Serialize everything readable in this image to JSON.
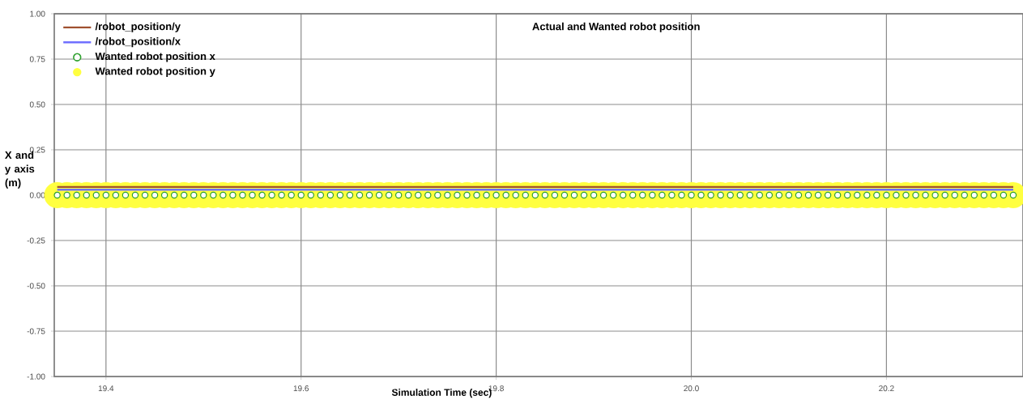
{
  "chart_data": {
    "type": "line",
    "title": "Actual and Wanted robot position",
    "xlabel": "Simulation Time (sec)",
    "ylabel": "X and y axis (m)",
    "xlim": [
      19.347,
      20.34
    ],
    "ylim": [
      -1,
      1
    ],
    "xticks": [
      19.4,
      19.6,
      19.8,
      {
        "value": 20.0,
        "label": "20.0"
      },
      20.2
    ],
    "yticks": [
      {
        "value": -1,
        "label": "-1.00"
      },
      {
        "value": -0.75,
        "label": "-0.75"
      },
      {
        "value": -0.5,
        "label": "-0.50"
      },
      {
        "value": -0.25,
        "label": "-0.25"
      },
      {
        "value": 0,
        "label": "0.00"
      },
      {
        "value": 0.25,
        "label": "0.25"
      },
      {
        "value": 0.5,
        "label": "0.50"
      },
      {
        "value": 0.75,
        "label": "0.75"
      },
      {
        "value": 1,
        "label": "1.00"
      }
    ],
    "grid": true,
    "legend": "top left",
    "series": [
      {
        "type": "scatter",
        "name": "Wanted robot position y",
        "color": "#ffff40",
        "marker": "circle",
        "x": [
          19.35,
          19.36,
          19.37,
          19.38,
          19.39,
          19.4,
          19.41,
          19.42,
          19.43,
          19.44,
          19.45,
          19.46,
          19.47,
          19.48,
          19.49,
          19.5,
          19.51,
          19.52,
          19.53,
          19.54,
          19.55,
          19.56,
          19.57,
          19.58,
          19.59,
          19.6,
          19.61,
          19.62,
          19.63,
          19.64,
          19.65,
          19.66,
          19.67,
          19.68,
          19.69,
          19.7,
          19.71,
          19.72,
          19.73,
          19.74,
          19.75,
          19.76,
          19.77,
          19.78,
          19.79,
          19.8,
          19.81,
          19.82,
          19.83,
          19.84,
          19.85,
          19.86,
          19.87,
          19.88,
          19.89,
          19.9,
          19.91,
          19.92,
          19.93,
          19.94,
          19.95,
          19.96,
          19.97,
          19.98,
          19.99,
          20.0,
          20.01,
          20.02,
          20.03,
          20.04,
          20.05,
          20.06,
          20.07,
          20.08,
          20.09,
          20.1,
          20.11,
          20.12,
          20.13,
          20.14,
          20.15,
          20.16,
          20.17,
          20.18,
          20.19,
          20.2,
          20.21,
          20.22,
          20.23,
          20.24,
          20.25,
          20.26,
          20.27,
          20.28,
          20.29,
          20.3,
          20.31,
          20.32,
          20.33
        ],
        "values": [
          0,
          0,
          0,
          0,
          0,
          0,
          0,
          0,
          0,
          0,
          0,
          0,
          0,
          0,
          0,
          0,
          0,
          0,
          0,
          0,
          0,
          0,
          0,
          0,
          0,
          0,
          0,
          0,
          0,
          0,
          0,
          0,
          0,
          0,
          0,
          0,
          0,
          0,
          0,
          0,
          0,
          0,
          0,
          0,
          0,
          0,
          0,
          0,
          0,
          0,
          0,
          0,
          0,
          0,
          0,
          0,
          0,
          0,
          0,
          0,
          0,
          0,
          0,
          0,
          0,
          0,
          0,
          0,
          0,
          0,
          0,
          0,
          0,
          0,
          0,
          0,
          0,
          0,
          0,
          0,
          0,
          0,
          0,
          0,
          0,
          0,
          0,
          0,
          0,
          0,
          0,
          0,
          0,
          0,
          0,
          0,
          0,
          0,
          0
        ]
      },
      {
        "type": "scatter",
        "name": "Wanted robot position x",
        "color": "#2ca02c",
        "marker": "circle",
        "x": [
          19.35,
          19.36,
          19.37,
          19.38,
          19.39,
          19.4,
          19.41,
          19.42,
          19.43,
          19.44,
          19.45,
          19.46,
          19.47,
          19.48,
          19.49,
          19.5,
          19.51,
          19.52,
          19.53,
          19.54,
          19.55,
          19.56,
          19.57,
          19.58,
          19.59,
          19.6,
          19.61,
          19.62,
          19.63,
          19.64,
          19.65,
          19.66,
          19.67,
          19.68,
          19.69,
          19.7,
          19.71,
          19.72,
          19.73,
          19.74,
          19.75,
          19.76,
          19.77,
          19.78,
          19.79,
          19.8,
          19.81,
          19.82,
          19.83,
          19.84,
          19.85,
          19.86,
          19.87,
          19.88,
          19.89,
          19.9,
          19.91,
          19.92,
          19.93,
          19.94,
          19.95,
          19.96,
          19.97,
          19.98,
          19.99,
          20.0,
          20.01,
          20.02,
          20.03,
          20.04,
          20.05,
          20.06,
          20.07,
          20.08,
          20.09,
          20.1,
          20.11,
          20.12,
          20.13,
          20.14,
          20.15,
          20.16,
          20.17,
          20.18,
          20.19,
          20.2,
          20.21,
          20.22,
          20.23,
          20.24,
          20.25,
          20.26,
          20.27,
          20.28,
          20.29,
          20.3,
          20.31,
          20.32,
          20.33
        ],
        "values": [
          0,
          0,
          0,
          0,
          0,
          0,
          0,
          0,
          0,
          0,
          0,
          0,
          0,
          0,
          0,
          0,
          0,
          0,
          0,
          0,
          0,
          0,
          0,
          0,
          0,
          0,
          0,
          0,
          0,
          0,
          0,
          0,
          0,
          0,
          0,
          0,
          0,
          0,
          0,
          0,
          0,
          0,
          0,
          0,
          0,
          0,
          0,
          0,
          0,
          0,
          0,
          0,
          0,
          0,
          0,
          0,
          0,
          0,
          0,
          0,
          0,
          0,
          0,
          0,
          0,
          0,
          0,
          0,
          0,
          0,
          0,
          0,
          0,
          0,
          0,
          0,
          0,
          0,
          0,
          0,
          0,
          0,
          0,
          0,
          0,
          0,
          0,
          0,
          0,
          0,
          0,
          0,
          0,
          0,
          0,
          0,
          0,
          0,
          0
        ]
      },
      {
        "name": "/robot_position/x",
        "color": "#7070ff",
        "x": [
          19.35,
          20.33
        ],
        "values": [
          0.03,
          0.03
        ]
      },
      {
        "name": "/robot_position/y",
        "color": "#a05030",
        "x": [
          19.35,
          20.33
        ],
        "values": [
          0.045,
          0.045
        ]
      }
    ]
  }
}
